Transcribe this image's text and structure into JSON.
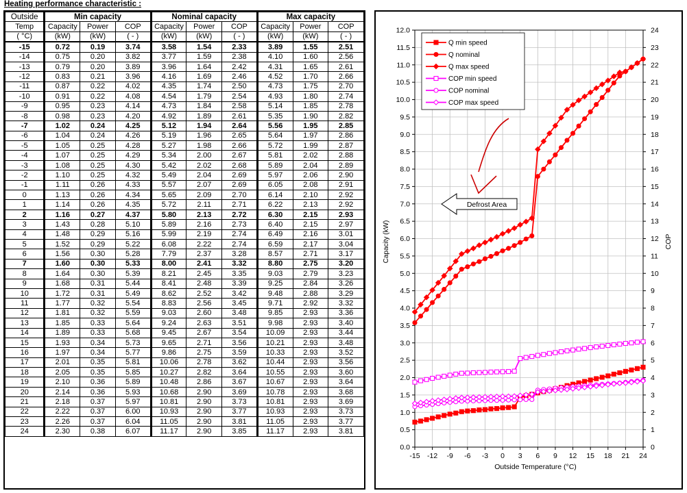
{
  "page_title": "Heating performance characteristic :",
  "table": {
    "group_headers": [
      "Outside",
      "Min capacity",
      "Nominal capacity",
      "Max capacity"
    ],
    "sub_headers": [
      "Temp",
      "Capacity",
      "Power",
      "COP",
      "Capacity",
      "Power",
      "COP",
      "Capacity",
      "Power",
      "COP"
    ],
    "units": [
      "( °C)",
      "(kW)",
      "(kW)",
      "( - )",
      "(kW)",
      "(kW)",
      "( - )",
      "(kW)",
      "(kW)",
      "( - )"
    ],
    "bold_temps": [
      "-15",
      "-7",
      "2",
      "7"
    ],
    "rows": [
      [
        "-15",
        "0.72",
        "0.19",
        "3.74",
        "3.58",
        "1.54",
        "2.33",
        "3.89",
        "1.55",
        "2.51"
      ],
      [
        "-14",
        "0.75",
        "0.20",
        "3.82",
        "3.77",
        "1.59",
        "2.38",
        "4.10",
        "1.60",
        "2.56"
      ],
      [
        "-13",
        "0.79",
        "0.20",
        "3.89",
        "3.96",
        "1.64",
        "2.42",
        "4.31",
        "1.65",
        "2.61"
      ],
      [
        "-12",
        "0.83",
        "0.21",
        "3.96",
        "4.16",
        "1.69",
        "2.46",
        "4.52",
        "1.70",
        "2.66"
      ],
      [
        "-11",
        "0.87",
        "0.22",
        "4.02",
        "4.35",
        "1.74",
        "2.50",
        "4.73",
        "1.75",
        "2.70"
      ],
      [
        "-10",
        "0.91",
        "0.22",
        "4.08",
        "4.54",
        "1.79",
        "2.54",
        "4.93",
        "1.80",
        "2.74"
      ],
      [
        "-9",
        "0.95",
        "0.23",
        "4.14",
        "4.73",
        "1.84",
        "2.58",
        "5.14",
        "1.85",
        "2.78"
      ],
      [
        "-8",
        "0.98",
        "0.23",
        "4.20",
        "4.92",
        "1.89",
        "2.61",
        "5.35",
        "1.90",
        "2.82"
      ],
      [
        "-7",
        "1.02",
        "0.24",
        "4.25",
        "5.12",
        "1.94",
        "2.64",
        "5.56",
        "1.95",
        "2.85"
      ],
      [
        "-6",
        "1.04",
        "0.24",
        "4.26",
        "5.19",
        "1.96",
        "2.65",
        "5.64",
        "1.97",
        "2.86"
      ],
      [
        "-5",
        "1.05",
        "0.25",
        "4.28",
        "5.27",
        "1.98",
        "2.66",
        "5.72",
        "1.99",
        "2.87"
      ],
      [
        "-4",
        "1.07",
        "0.25",
        "4.29",
        "5.34",
        "2.00",
        "2.67",
        "5.81",
        "2.02",
        "2.88"
      ],
      [
        "-3",
        "1.08",
        "0.25",
        "4.30",
        "5.42",
        "2.02",
        "2.68",
        "5.89",
        "2.04",
        "2.89"
      ],
      [
        "-2",
        "1.10",
        "0.25",
        "4.32",
        "5.49",
        "2.04",
        "2.69",
        "5.97",
        "2.06",
        "2.90"
      ],
      [
        "-1",
        "1.11",
        "0.26",
        "4.33",
        "5.57",
        "2.07",
        "2.69",
        "6.05",
        "2.08",
        "2.91"
      ],
      [
        "0",
        "1.13",
        "0.26",
        "4.34",
        "5.65",
        "2.09",
        "2.70",
        "6.14",
        "2.10",
        "2.92"
      ],
      [
        "1",
        "1.14",
        "0.26",
        "4.35",
        "5.72",
        "2.11",
        "2.71",
        "6.22",
        "2.13",
        "2.92"
      ],
      [
        "2",
        "1.16",
        "0.27",
        "4.37",
        "5.80",
        "2.13",
        "2.72",
        "6.30",
        "2.15",
        "2.93"
      ],
      [
        "3",
        "1.43",
        "0.28",
        "5.10",
        "5.89",
        "2.16",
        "2.73",
        "6.40",
        "2.15",
        "2.97"
      ],
      [
        "4",
        "1.48",
        "0.29",
        "5.16",
        "5.99",
        "2.19",
        "2.74",
        "6.49",
        "2.16",
        "3.01"
      ],
      [
        "5",
        "1.52",
        "0.29",
        "5.22",
        "6.08",
        "2.22",
        "2.74",
        "6.59",
        "2.17",
        "3.04"
      ],
      [
        "6",
        "1.56",
        "0.30",
        "5.28",
        "7.79",
        "2.37",
        "3.28",
        "8.57",
        "2.71",
        "3.17"
      ],
      [
        "7",
        "1.60",
        "0.30",
        "5.33",
        "8.00",
        "2.41",
        "3.32",
        "8.80",
        "2.75",
        "3.20"
      ],
      [
        "8",
        "1.64",
        "0.30",
        "5.39",
        "8.21",
        "2.45",
        "3.35",
        "9.03",
        "2.79",
        "3.23"
      ],
      [
        "9",
        "1.68",
        "0.31",
        "5.44",
        "8.41",
        "2.48",
        "3.39",
        "9.25",
        "2.84",
        "3.26"
      ],
      [
        "10",
        "1.72",
        "0.31",
        "5.49",
        "8.62",
        "2.52",
        "3.42",
        "9.48",
        "2.88",
        "3.29"
      ],
      [
        "11",
        "1.77",
        "0.32",
        "5.54",
        "8.83",
        "2.56",
        "3.45",
        "9.71",
        "2.92",
        "3.32"
      ],
      [
        "12",
        "1.81",
        "0.32",
        "5.59",
        "9.03",
        "2.60",
        "3.48",
        "9.85",
        "2.93",
        "3.36"
      ],
      [
        "13",
        "1.85",
        "0.33",
        "5.64",
        "9.24",
        "2.63",
        "3.51",
        "9.98",
        "2.93",
        "3.40"
      ],
      [
        "14",
        "1.89",
        "0.33",
        "5.68",
        "9.45",
        "2.67",
        "3.54",
        "10.09",
        "2.93",
        "3.44"
      ],
      [
        "15",
        "1.93",
        "0.34",
        "5.73",
        "9.65",
        "2.71",
        "3.56",
        "10.21",
        "2.93",
        "3.48"
      ],
      [
        "16",
        "1.97",
        "0.34",
        "5.77",
        "9.86",
        "2.75",
        "3.59",
        "10.33",
        "2.93",
        "3.52"
      ],
      [
        "17",
        "2.01",
        "0.35",
        "5.81",
        "10.06",
        "2.78",
        "3.62",
        "10.44",
        "2.93",
        "3.56"
      ],
      [
        "18",
        "2.05",
        "0.35",
        "5.85",
        "10.27",
        "2.82",
        "3.64",
        "10.55",
        "2.93",
        "3.60"
      ],
      [
        "19",
        "2.10",
        "0.36",
        "5.89",
        "10.48",
        "2.86",
        "3.67",
        "10.67",
        "2.93",
        "3.64"
      ],
      [
        "20",
        "2.14",
        "0.36",
        "5.93",
        "10.68",
        "2.90",
        "3.69",
        "10.78",
        "2.93",
        "3.68"
      ],
      [
        "21",
        "2.18",
        "0.37",
        "5.97",
        "10.81",
        "2.90",
        "3.73",
        "10.81",
        "2.93",
        "3.69"
      ],
      [
        "22",
        "2.22",
        "0.37",
        "6.00",
        "10.93",
        "2.90",
        "3.77",
        "10.93",
        "2.93",
        "3.73"
      ],
      [
        "23",
        "2.26",
        "0.37",
        "6.04",
        "11.05",
        "2.90",
        "3.81",
        "11.05",
        "2.93",
        "3.77"
      ],
      [
        "24",
        "2.30",
        "0.38",
        "6.07",
        "11.17",
        "2.90",
        "3.85",
        "11.17",
        "2.93",
        "3.81"
      ]
    ]
  },
  "chart_data": {
    "type": "line",
    "title": "",
    "xlabel": "Outside Temperature (°C)",
    "ylabel": "Capacity (kW)",
    "y2label": "COP",
    "xlim": [
      -15,
      24
    ],
    "ylim": [
      0,
      12
    ],
    "y2lim": [
      0,
      24
    ],
    "xticks": [
      "-15",
      "-12",
      "-9",
      "-6",
      "-3",
      "0",
      "3",
      "6",
      "9",
      "12",
      "15",
      "18",
      "21",
      "24"
    ],
    "yticks": [
      "0.0",
      "0.5",
      "1.0",
      "1.5",
      "2.0",
      "2.5",
      "3.0",
      "3.5",
      "4.0",
      "4.5",
      "5.0",
      "5.5",
      "6.0",
      "6.5",
      "7.0",
      "7.5",
      "8.0",
      "8.5",
      "9.0",
      "9.5",
      "10.0",
      "10.5",
      "11.0",
      "11.5",
      "12.0"
    ],
    "y2ticks": [
      "0",
      "1",
      "2",
      "3",
      "4",
      "5",
      "6",
      "7",
      "8",
      "9",
      "10",
      "11",
      "12",
      "13",
      "14",
      "15",
      "16",
      "17",
      "18",
      "19",
      "20",
      "21",
      "22",
      "23",
      "24"
    ],
    "grid": true,
    "legend_position": "top-left",
    "x": [
      -15,
      -14,
      -13,
      -12,
      -11,
      -10,
      -9,
      -8,
      -7,
      -6,
      -5,
      -4,
      -3,
      -2,
      -1,
      0,
      1,
      2,
      3,
      4,
      5,
      6,
      7,
      8,
      9,
      10,
      11,
      12,
      13,
      14,
      15,
      16,
      17,
      18,
      19,
      20,
      21,
      22,
      23,
      24
    ],
    "series": [
      {
        "name": "Q min speed",
        "axis": "left",
        "marker": "filled-square",
        "color": "#ff0000",
        "values": [
          0.72,
          0.75,
          0.79,
          0.83,
          0.87,
          0.91,
          0.95,
          0.98,
          1.02,
          1.04,
          1.05,
          1.07,
          1.08,
          1.1,
          1.11,
          1.13,
          1.14,
          1.16,
          1.43,
          1.48,
          1.52,
          1.56,
          1.6,
          1.64,
          1.68,
          1.72,
          1.77,
          1.81,
          1.85,
          1.89,
          1.93,
          1.97,
          2.01,
          2.05,
          2.1,
          2.14,
          2.18,
          2.22,
          2.26,
          2.3
        ]
      },
      {
        "name": "Q nominal",
        "axis": "left",
        "marker": "filled-circle",
        "color": "#ff0000",
        "values": [
          3.58,
          3.77,
          3.96,
          4.16,
          4.35,
          4.54,
          4.73,
          4.92,
          5.12,
          5.19,
          5.27,
          5.34,
          5.42,
          5.49,
          5.57,
          5.65,
          5.72,
          5.8,
          5.89,
          5.99,
          6.08,
          7.79,
          8.0,
          8.21,
          8.41,
          8.62,
          8.83,
          9.03,
          9.24,
          9.45,
          9.65,
          9.86,
          10.06,
          10.27,
          10.48,
          10.68,
          10.81,
          10.93,
          11.05,
          11.17
        ]
      },
      {
        "name": "Q max speed",
        "axis": "left",
        "marker": "filled-diamond",
        "color": "#ff0000",
        "values": [
          3.89,
          4.1,
          4.31,
          4.52,
          4.73,
          4.93,
          5.14,
          5.35,
          5.56,
          5.64,
          5.72,
          5.81,
          5.89,
          5.97,
          6.05,
          6.14,
          6.22,
          6.3,
          6.4,
          6.49,
          6.59,
          8.57,
          8.8,
          9.03,
          9.25,
          9.48,
          9.71,
          9.85,
          9.98,
          10.09,
          10.21,
          10.33,
          10.44,
          10.55,
          10.67,
          10.78,
          10.81,
          10.93,
          11.05,
          11.17
        ]
      },
      {
        "name": "COP min speed",
        "axis": "right",
        "marker": "open-square",
        "color": "#ff00ff",
        "values": [
          3.74,
          3.82,
          3.89,
          3.96,
          4.02,
          4.08,
          4.14,
          4.2,
          4.25,
          4.26,
          4.28,
          4.29,
          4.3,
          4.32,
          4.33,
          4.34,
          4.35,
          4.37,
          5.1,
          5.16,
          5.22,
          5.28,
          5.33,
          5.39,
          5.44,
          5.49,
          5.54,
          5.59,
          5.64,
          5.68,
          5.73,
          5.77,
          5.81,
          5.85,
          5.89,
          5.93,
          5.97,
          6.0,
          6.04,
          6.07
        ]
      },
      {
        "name": "COP nominal",
        "axis": "right",
        "marker": "open-circle",
        "color": "#ff00ff",
        "values": [
          2.33,
          2.38,
          2.42,
          2.46,
          2.5,
          2.54,
          2.58,
          2.61,
          2.64,
          2.65,
          2.66,
          2.67,
          2.68,
          2.69,
          2.69,
          2.7,
          2.71,
          2.72,
          2.73,
          2.74,
          2.74,
          3.28,
          3.32,
          3.35,
          3.39,
          3.42,
          3.45,
          3.48,
          3.51,
          3.54,
          3.56,
          3.59,
          3.62,
          3.64,
          3.67,
          3.69,
          3.73,
          3.77,
          3.81,
          3.85
        ]
      },
      {
        "name": "COP max speed",
        "axis": "right",
        "marker": "open-diamond",
        "color": "#ff00ff",
        "values": [
          2.51,
          2.56,
          2.61,
          2.66,
          2.7,
          2.74,
          2.78,
          2.82,
          2.85,
          2.86,
          2.87,
          2.88,
          2.89,
          2.9,
          2.91,
          2.92,
          2.92,
          2.93,
          2.97,
          3.01,
          3.04,
          3.17,
          3.2,
          3.23,
          3.26,
          3.29,
          3.32,
          3.36,
          3.4,
          3.44,
          3.48,
          3.52,
          3.56,
          3.6,
          3.64,
          3.68,
          3.69,
          3.73,
          3.77,
          3.81
        ]
      }
    ],
    "annotation": "Defrost Area"
  }
}
